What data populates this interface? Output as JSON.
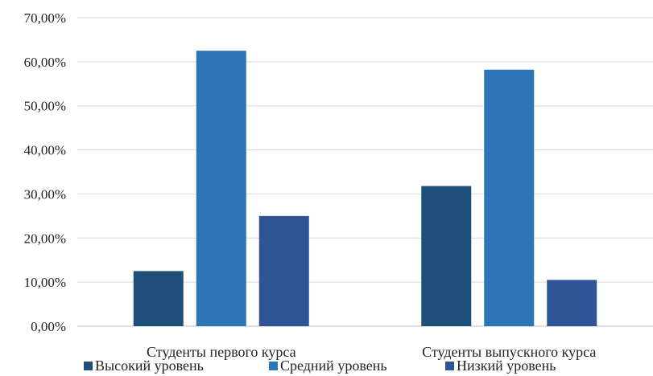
{
  "chart_data": {
    "type": "bar",
    "categories": [
      "Студенты первого курса",
      "Студенты выпускного курса"
    ],
    "series": [
      {
        "name": "Высокий уровень",
        "values": [
          12.5,
          31.8
        ],
        "color": "#1f4e79"
      },
      {
        "name": "Средний уровень",
        "values": [
          62.5,
          58.2
        ],
        "color": "#2e75b6"
      },
      {
        "name": "Низкий уровень",
        "values": [
          25.0,
          10.5
        ],
        "color": "#2f5597"
      }
    ],
    "y_ticks": [
      "0,00%",
      "10,00%",
      "20,00%",
      "30,00%",
      "40,00%",
      "50,00%",
      "60,00%",
      "70,00%"
    ],
    "ylim": [
      0,
      70
    ],
    "grid": true,
    "legend_position": "bottom"
  }
}
